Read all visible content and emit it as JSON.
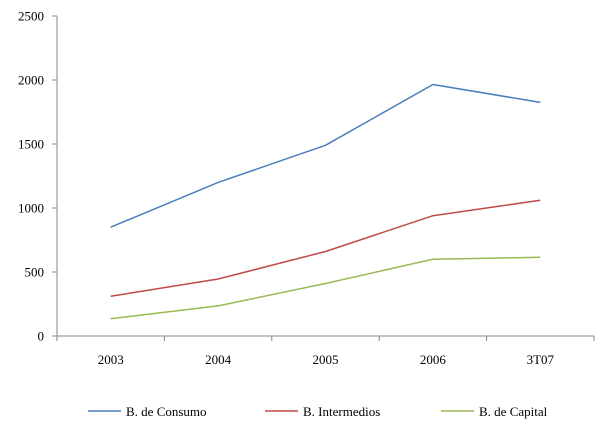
{
  "chart_data": {
    "type": "line",
    "categories": [
      "2003",
      "2004",
      "2005",
      "2006",
      "3T07"
    ],
    "series": [
      {
        "name": "B. de Consumo",
        "color": "#4a7ebb",
        "values": [
          850,
          1200,
          1490,
          1965,
          1825
        ]
      },
      {
        "name": "B. Intermedios",
        "color": "#be4b48",
        "values": [
          310,
          445,
          660,
          940,
          1060
        ]
      },
      {
        "name": "B. de Capital",
        "color": "#98b954",
        "values": [
          135,
          235,
          410,
          600,
          615
        ]
      }
    ],
    "title": "",
    "xlabel": "",
    "ylabel": "",
    "ylim": [
      0,
      2500
    ],
    "yticks": [
      0,
      500,
      1000,
      1500,
      2000,
      2500
    ],
    "grid": false,
    "legend_position": "bottom"
  }
}
